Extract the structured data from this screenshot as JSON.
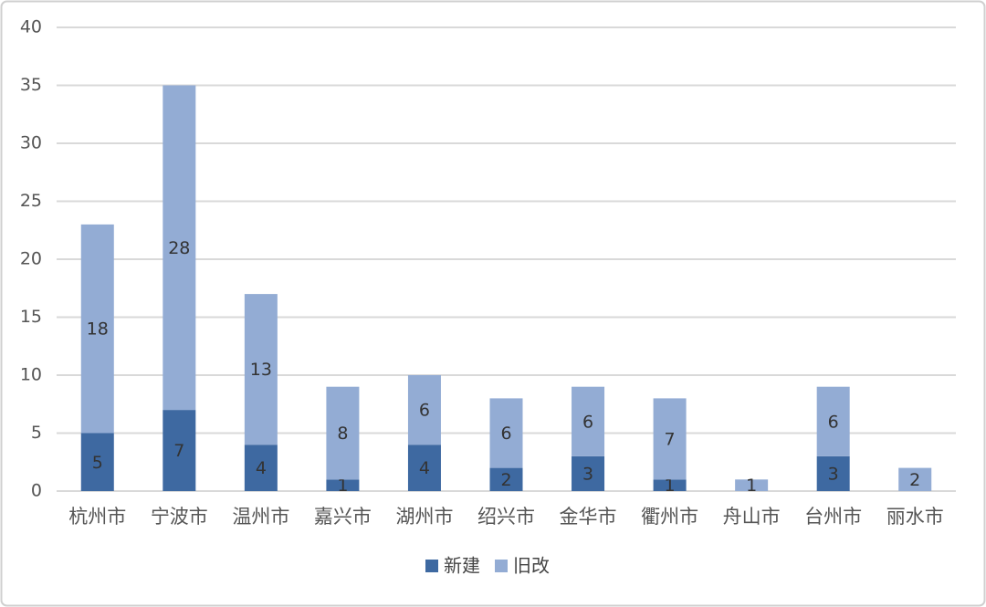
{
  "chart_data": {
    "type": "stacked_bar",
    "categories": [
      "杭州市",
      "宁波市",
      "温州市",
      "嘉兴市",
      "湖州市",
      "绍兴市",
      "金华市",
      "衢州市",
      "舟山市",
      "台州市",
      "丽水市"
    ],
    "series": [
      {
        "name": "新建",
        "color": "#3e69a1",
        "values": [
          5,
          7,
          4,
          1,
          4,
          2,
          3,
          1,
          0,
          3,
          0
        ]
      },
      {
        "name": "旧改",
        "color": "#93acd4",
        "values": [
          18,
          28,
          13,
          8,
          6,
          6,
          6,
          7,
          1,
          6,
          2
        ]
      }
    ],
    "ylim": [
      0,
      40
    ],
    "yticks": [
      0,
      5,
      10,
      15,
      20,
      25,
      30,
      35,
      40
    ],
    "grid": true,
    "legend": "bottom"
  }
}
